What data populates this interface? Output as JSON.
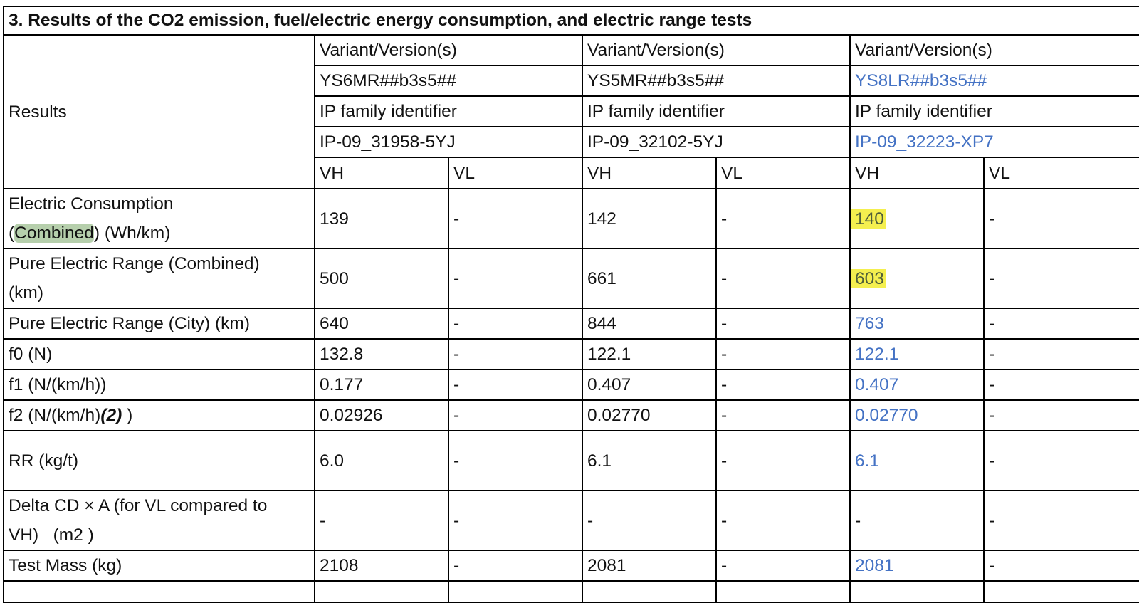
{
  "section_title": "3. Results of the CO2 emission, fuel/electric energy consumption, and electric range tests",
  "results_label": "Results",
  "variant_label": "Variant/Version(s)",
  "ip_label": "IP family identifier",
  "vh_label": "VH",
  "vl_label": "VL",
  "variants": [
    {
      "code": "YS6MR##b3s5##",
      "ip": "IP-09_31958-5YJ"
    },
    {
      "code": "YS5MR##b3s5##",
      "ip": "IP-09_32102-5YJ"
    },
    {
      "code": "YS8LR##b3s5##",
      "ip": "IP-09_32223-XP7"
    }
  ],
  "rows": [
    {
      "label_a": "Electric Consumption",
      "label_b1": "(",
      "label_b_hl": "Combined",
      "label_b2": ") (Wh/km)",
      "vals": [
        "139",
        "-",
        "142",
        "-",
        "140",
        "-"
      ]
    },
    {
      "label_a": "Pure Electric Range (Combined)",
      "label_b": "(km)",
      "vals": [
        "500",
        "-",
        "661",
        "-",
        "603",
        "-"
      ]
    },
    {
      "label": "Pure Electric Range (City) (km)",
      "vals": [
        "640",
        "-",
        "844",
        "-",
        "763",
        "-"
      ]
    },
    {
      "label": "f0 (N)",
      "vals": [
        "132.8",
        "-",
        "122.1",
        "-",
        "122.1",
        "-"
      ]
    },
    {
      "label": "f1 (N/(km/h))",
      "vals": [
        "0.177",
        "-",
        "0.407",
        "-",
        "0.407",
        "-"
      ]
    },
    {
      "label_main": "f2 (N/(km/h)",
      "label_sup": "(2)",
      "label_end": " )",
      "vals": [
        "0.02926",
        "-",
        "0.02770",
        "-",
        "0.02770",
        "-"
      ]
    },
    {
      "label": "RR (kg/t)",
      "vals": [
        "6.0",
        "-",
        "6.1",
        "-",
        "6.1",
        "-"
      ]
    },
    {
      "label_a": "Delta CD × A (for VL compared to",
      "label_b": "VH)   (m2 )",
      "vals": [
        "-",
        "-",
        "-",
        "-",
        "-",
        "-"
      ]
    },
    {
      "label": "Test Mass (kg)",
      "vals": [
        "2108",
        "-",
        "2081",
        "-",
        "2081",
        "-"
      ]
    }
  ]
}
